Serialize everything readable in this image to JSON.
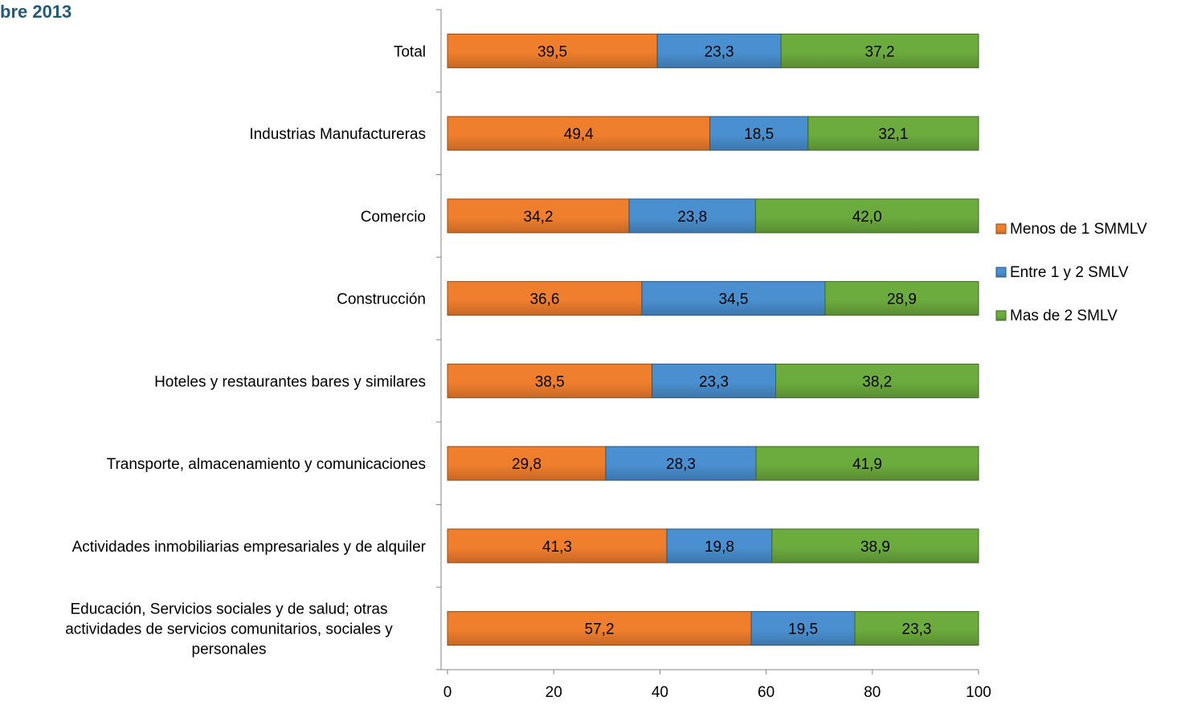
{
  "header": {
    "title_fragment": "bre 2013"
  },
  "chart_data": {
    "type": "bar",
    "orientation": "horizontal",
    "stacked": true,
    "categories": [
      "Total",
      "Industrias  Manufactureras",
      "Comercio",
      "Construcción",
      "Hoteles y restaurantes  bares y similares",
      "Transporte, almacenamiento  y comunicaciones",
      "Actividades inmobiliarias  empresariales y de alquiler",
      "Educación, Servicios sociales y de salud;  otras actividades  de servicios comunitarios,  sociales y personales"
    ],
    "category_label_lines": [
      [
        "Total"
      ],
      [
        "Industrias  Manufactureras"
      ],
      [
        "Comercio"
      ],
      [
        "Construcción"
      ],
      [
        "Hoteles y restaurantes  bares y similares"
      ],
      [
        "Transporte, almacenamiento  y comunicaciones"
      ],
      [
        "Actividades inmobiliarias  empresariales y de alquiler"
      ],
      [
        "Educación, Servicios sociales y de salud;  otras",
        "actividades  de servicios comunitarios,  sociales y",
        "personales"
      ]
    ],
    "series": [
      {
        "name": "Menos de 1 SMMLV",
        "color": "#f07f2d",
        "values": [
          39.5,
          49.4,
          34.2,
          36.6,
          38.5,
          29.8,
          41.3,
          57.2
        ],
        "labels": [
          "39,5",
          "49,4",
          "34,2",
          "36,6",
          "38,5",
          "29,8",
          "41,3",
          "57,2"
        ]
      },
      {
        "name": "Entre 1 y 2 SMLV",
        "color": "#4a90d0",
        "values": [
          23.3,
          18.5,
          23.8,
          34.5,
          23.3,
          28.3,
          19.8,
          19.5
        ],
        "labels": [
          "23,3",
          "18,5",
          "23,8",
          "34,5",
          "23,3",
          "28,3",
          "19,8",
          "19,5"
        ]
      },
      {
        "name": "Mas de 2 SMLV",
        "color": "#6cab3e",
        "values": [
          37.2,
          32.1,
          42.0,
          28.9,
          38.2,
          41.9,
          38.9,
          23.3
        ],
        "labels": [
          "37,2",
          "32,1",
          "42,0",
          "28,9",
          "38,2",
          "41,9",
          "38,9",
          "23,3"
        ]
      }
    ],
    "xlim": [
      0,
      100
    ],
    "xticks": [
      "0",
      "20",
      "40",
      "60",
      "80",
      "100"
    ],
    "legend_position": "right",
    "grid": false
  }
}
